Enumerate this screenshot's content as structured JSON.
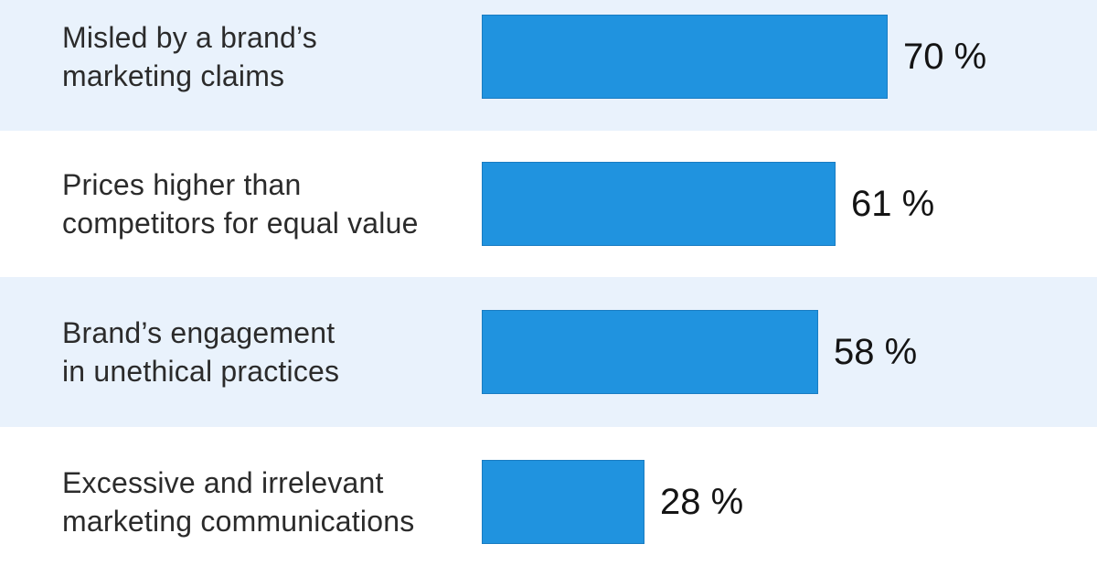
{
  "chart_data": {
    "type": "bar",
    "orientation": "horizontal",
    "title": "",
    "xlabel": "",
    "ylabel": "",
    "xlim": [
      0,
      100
    ],
    "grid": false,
    "legend": false,
    "unit": "%",
    "categories": [
      "Misled by a brand’s marketing claims",
      "Prices higher than competitors for equal value",
      "Brand’s engagement in unethical practices",
      "Excessive and irrelevant marketing communications"
    ],
    "category_lines": [
      [
        "Misled by a brand’s",
        "marketing claims"
      ],
      [
        "Prices higher than",
        "competitors for equal value"
      ],
      [
        "Brand’s engagement",
        "in unethical practices"
      ],
      [
        "Excessive and irrelevant",
        "marketing communications"
      ]
    ],
    "values": [
      70,
      61,
      58,
      28
    ],
    "value_labels": [
      "70 %",
      "61 %",
      "58 %",
      "28 %"
    ],
    "colors": {
      "bar": "#2093df",
      "stripe_blue": "#e9f2fc",
      "stripe_white": "#ffffff",
      "category_text": "#2b2b2b",
      "value_text": "#141414"
    }
  }
}
